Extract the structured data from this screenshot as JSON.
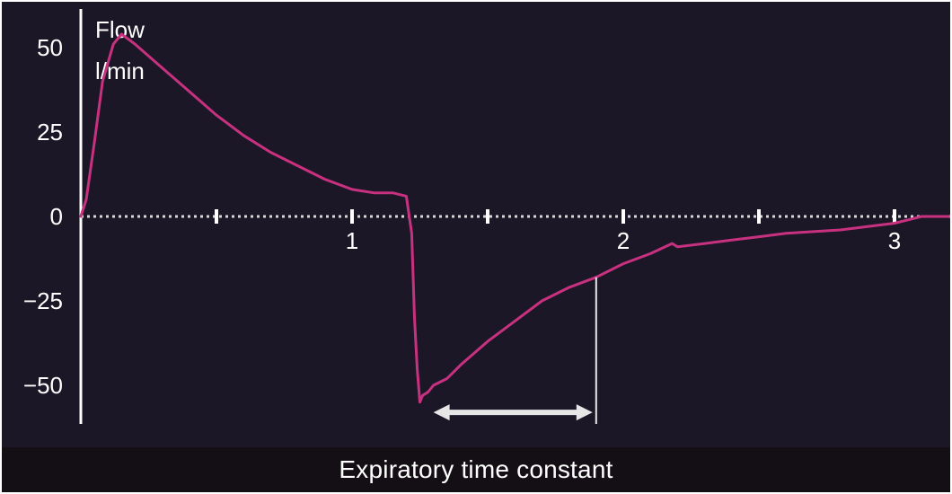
{
  "chart_data": {
    "type": "line",
    "ylabel": "Flow",
    "yunit": "l/min",
    "caption": "Expiratory time constant",
    "yticks": [
      50,
      25,
      0,
      -25,
      -50
    ],
    "ytick_labels": [
      "50",
      "25",
      "0",
      "−25",
      "−50"
    ],
    "xticks": [
      1,
      2,
      3
    ],
    "xtick_labels": [
      "1",
      "2",
      "3"
    ],
    "minor_xticks": [
      0.5,
      1.5,
      2.5
    ],
    "ylim": [
      -60,
      57
    ],
    "xlim": [
      0,
      3.2
    ],
    "series": [
      {
        "color": "#c8317f",
        "x": [
          0,
          0.02,
          0.05,
          0.08,
          0.12,
          0.15,
          0.2,
          0.3,
          0.4,
          0.5,
          0.6,
          0.7,
          0.8,
          0.9,
          1.0,
          1.08,
          1.15,
          1.2,
          1.22,
          1.23,
          1.24,
          1.25,
          1.26,
          1.28,
          1.3,
          1.35,
          1.4,
          1.5,
          1.6,
          1.7,
          1.8,
          1.9,
          2.0,
          2.1,
          2.18,
          2.2,
          2.3,
          2.4,
          2.5,
          2.6,
          2.7,
          2.8,
          2.9,
          3.0,
          3.05,
          3.1,
          3.2
        ],
        "y": [
          0,
          5,
          22,
          40,
          51,
          54,
          51,
          44,
          37,
          30,
          24,
          19,
          15,
          11,
          8,
          7,
          7,
          6,
          -5,
          -30,
          -45,
          -55,
          -53,
          -52,
          -50,
          -48,
          -44,
          -37,
          -31,
          -25,
          -21,
          -18,
          -14,
          -11,
          -8,
          -9,
          -8,
          -7,
          -6,
          -5,
          -4.5,
          -4,
          -3,
          -2,
          -1,
          0,
          0
        ]
      }
    ],
    "annotation": {
      "arrow_x": [
        1.3,
        1.9
      ],
      "arrow_y": -58,
      "marker_x": 1.9,
      "marker_y_range": [
        -60,
        -18
      ]
    }
  }
}
